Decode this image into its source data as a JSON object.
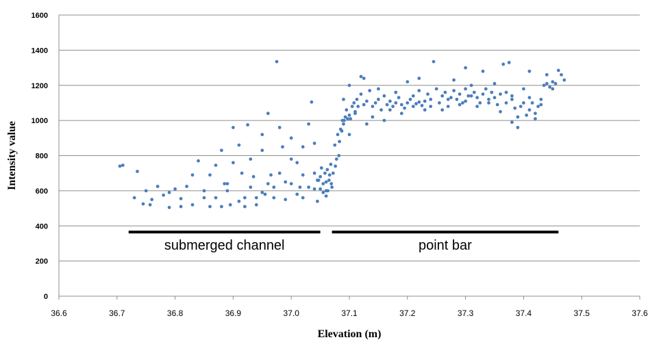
{
  "chart_data": {
    "type": "scatter",
    "xlabel": "Elevation (m)",
    "ylabel": "Intensity value",
    "xlim": [
      36.6,
      37.6
    ],
    "ylim": [
      0,
      1600
    ],
    "xticks": [
      "36.6",
      "36.7",
      "36.8",
      "36.9",
      "37.0",
      "37.1",
      "37.2",
      "37.3",
      "37.4",
      "37.5",
      "37.6"
    ],
    "yticks": [
      "0",
      "200",
      "400",
      "600",
      "800",
      "1000",
      "1200",
      "1400",
      "1600"
    ],
    "grid": "horizontal",
    "point_color": "#4a7ebb",
    "annotations": [
      {
        "text": "submerged channel",
        "x_range": [
          36.72,
          37.05
        ],
        "y": 365
      },
      {
        "text": "point bar",
        "x_range": [
          37.07,
          37.46
        ],
        "y": 365
      }
    ],
    "series": [
      {
        "points": [
          [
            36.71,
            745
          ],
          [
            36.705,
            740
          ],
          [
            36.735,
            710
          ],
          [
            36.73,
            560
          ],
          [
            36.745,
            525
          ],
          [
            36.757,
            520
          ],
          [
            36.77,
            625
          ],
          [
            36.78,
            575
          ],
          [
            36.79,
            505
          ],
          [
            36.8,
            610
          ],
          [
            36.81,
            555
          ],
          [
            36.82,
            625
          ],
          [
            36.83,
            520
          ],
          [
            36.84,
            770
          ],
          [
            36.85,
            560
          ],
          [
            36.86,
            690
          ],
          [
            36.87,
            745
          ],
          [
            36.88,
            830
          ],
          [
            36.885,
            640
          ],
          [
            36.89,
            600
          ],
          [
            36.895,
            520
          ],
          [
            36.9,
            960
          ],
          [
            36.91,
            860
          ],
          [
            36.915,
            700
          ],
          [
            36.92,
            560
          ],
          [
            36.925,
            975
          ],
          [
            36.93,
            780
          ],
          [
            36.935,
            680
          ],
          [
            36.94,
            520
          ],
          [
            36.95,
            920
          ],
          [
            36.955,
            580
          ],
          [
            36.96,
            1040
          ],
          [
            36.965,
            690
          ],
          [
            36.97,
            620
          ],
          [
            36.975,
            1335
          ],
          [
            36.98,
            960
          ],
          [
            36.985,
            850
          ],
          [
            36.99,
            550
          ],
          [
            37.0,
            900
          ],
          [
            37.01,
            760
          ],
          [
            37.015,
            620
          ],
          [
            37.02,
            690
          ],
          [
            37.03,
            980
          ],
          [
            37.035,
            1105
          ],
          [
            37.04,
            870
          ],
          [
            37.045,
            540
          ],
          [
            36.75,
            600
          ],
          [
            36.76,
            550
          ],
          [
            36.79,
            590
          ],
          [
            36.81,
            510
          ],
          [
            36.83,
            690
          ],
          [
            36.85,
            600
          ],
          [
            36.87,
            560
          ],
          [
            36.89,
            640
          ],
          [
            36.91,
            540
          ],
          [
            36.93,
            620
          ],
          [
            36.95,
            590
          ],
          [
            36.97,
            560
          ],
          [
            36.99,
            650
          ],
          [
            37.01,
            580
          ],
          [
            37.03,
            620
          ],
          [
            37.045,
            660
          ],
          [
            36.86,
            510
          ],
          [
            36.88,
            510
          ],
          [
            36.92,
            510
          ],
          [
            36.94,
            560
          ],
          [
            36.96,
            640
          ],
          [
            36.98,
            700
          ],
          [
            37.0,
            640
          ],
          [
            37.02,
            560
          ],
          [
            37.04,
            700
          ],
          [
            36.9,
            760
          ],
          [
            36.95,
            830
          ],
          [
            37.0,
            780
          ],
          [
            37.02,
            850
          ],
          [
            37.04,
            610
          ],
          [
            37.05,
            680
          ],
          [
            37.055,
            640
          ],
          [
            37.06,
            600
          ],
          [
            37.062,
            720
          ],
          [
            37.065,
            660
          ],
          [
            37.068,
            750
          ],
          [
            37.07,
            620
          ],
          [
            37.055,
            590
          ],
          [
            37.058,
            700
          ],
          [
            37.06,
            650
          ],
          [
            37.063,
            600
          ],
          [
            37.066,
            690
          ],
          [
            37.069,
            640
          ],
          [
            37.05,
            610
          ],
          [
            37.052,
            730
          ],
          [
            37.047,
            660
          ],
          [
            37.075,
            860
          ],
          [
            37.08,
            920
          ],
          [
            37.082,
            800
          ],
          [
            37.085,
            950
          ],
          [
            37.088,
            1000
          ],
          [
            37.09,
            980
          ],
          [
            37.093,
            1020
          ],
          [
            37.095,
            1060
          ],
          [
            37.1,
            1030
          ],
          [
            37.102,
            1010
          ],
          [
            37.105,
            1080
          ],
          [
            37.108,
            1100
          ],
          [
            37.11,
            1050
          ],
          [
            37.113,
            1120
          ],
          [
            37.115,
            1080
          ],
          [
            37.12,
            1150
          ],
          [
            37.125,
            1090
          ],
          [
            37.13,
            1110
          ],
          [
            37.135,
            1170
          ],
          [
            37.14,
            1080
          ],
          [
            37.145,
            1100
          ],
          [
            37.15,
            1120
          ],
          [
            37.155,
            1060
          ],
          [
            37.16,
            1140
          ],
          [
            37.165,
            1090
          ],
          [
            37.17,
            1110
          ],
          [
            37.175,
            1080
          ],
          [
            37.18,
            1100
          ],
          [
            37.185,
            1130
          ],
          [
            37.19,
            1090
          ],
          [
            37.195,
            1070
          ],
          [
            37.2,
            1100
          ],
          [
            37.205,
            1120
          ],
          [
            37.21,
            1080
          ],
          [
            37.215,
            1095
          ],
          [
            37.22,
            1105
          ],
          [
            37.225,
            1085
          ],
          [
            37.23,
            1110
          ],
          [
            37.235,
            1150
          ],
          [
            37.24,
            1120
          ],
          [
            37.245,
            1335
          ],
          [
            37.25,
            1180
          ],
          [
            37.255,
            1100
          ],
          [
            37.26,
            1140
          ],
          [
            37.265,
            1160
          ],
          [
            37.27,
            1080
          ],
          [
            37.275,
            1130
          ],
          [
            37.28,
            1170
          ],
          [
            37.285,
            1120
          ],
          [
            37.29,
            1150
          ],
          [
            37.295,
            1100
          ],
          [
            37.3,
            1180
          ],
          [
            37.305,
            1140
          ],
          [
            37.31,
            1200
          ],
          [
            37.315,
            1160
          ],
          [
            37.32,
            1130
          ],
          [
            37.325,
            1100
          ],
          [
            37.33,
            1150
          ],
          [
            37.335,
            1180
          ],
          [
            37.34,
            1120
          ],
          [
            37.345,
            1160
          ],
          [
            37.35,
            1130
          ],
          [
            37.355,
            1090
          ],
          [
            37.36,
            1150
          ],
          [
            37.365,
            1320
          ],
          [
            37.37,
            1100
          ],
          [
            37.375,
            1330
          ],
          [
            37.38,
            1120
          ],
          [
            37.385,
            1070
          ],
          [
            37.39,
            1020
          ],
          [
            37.395,
            1080
          ],
          [
            37.4,
            1100
          ],
          [
            37.405,
            1030
          ],
          [
            37.41,
            1060
          ],
          [
            37.415,
            1100
          ],
          [
            37.42,
            1040
          ],
          [
            37.425,
            1080
          ],
          [
            37.43,
            1120
          ],
          [
            37.435,
            1200
          ],
          [
            37.44,
            1210
          ],
          [
            37.445,
            1190
          ],
          [
            37.45,
            1220
          ],
          [
            37.455,
            1210
          ],
          [
            37.46,
            1285
          ],
          [
            37.465,
            1260
          ],
          [
            37.47,
            1230
          ],
          [
            37.12,
            1250
          ],
          [
            37.125,
            1240
          ],
          [
            37.2,
            1220
          ],
          [
            37.22,
            1240
          ],
          [
            37.3,
            1300
          ],
          [
            37.33,
            1280
          ],
          [
            37.41,
            1280
          ],
          [
            37.44,
            1260
          ],
          [
            37.1,
            920
          ],
          [
            37.13,
            980
          ],
          [
            37.16,
            1000
          ],
          [
            37.19,
            1040
          ],
          [
            37.23,
            1060
          ],
          [
            37.26,
            1060
          ],
          [
            37.29,
            1090
          ],
          [
            37.32,
            1080
          ],
          [
            37.36,
            1050
          ],
          [
            37.38,
            990
          ],
          [
            37.39,
            960
          ],
          [
            37.42,
            1010
          ],
          [
            37.14,
            1020
          ],
          [
            37.17,
            1060
          ],
          [
            37.21,
            1140
          ],
          [
            37.24,
            1080
          ],
          [
            37.27,
            1120
          ],
          [
            37.31,
            1140
          ],
          [
            37.34,
            1100
          ],
          [
            37.37,
            1160
          ],
          [
            37.4,
            1180
          ],
          [
            37.43,
            1090
          ],
          [
            37.11,
            1040
          ],
          [
            37.15,
            1180
          ],
          [
            37.18,
            1160
          ],
          [
            37.22,
            1170
          ],
          [
            37.28,
            1230
          ],
          [
            37.3,
            1110
          ],
          [
            37.35,
            1210
          ],
          [
            37.38,
            1140
          ],
          [
            37.41,
            1130
          ],
          [
            37.45,
            1180
          ],
          [
            37.083,
            880
          ],
          [
            37.087,
            940
          ],
          [
            37.091,
            1000
          ],
          [
            37.097,
            1010
          ],
          [
            37.078,
            780
          ],
          [
            37.072,
            700
          ],
          [
            37.076,
            740
          ],
          [
            37.09,
            1120
          ],
          [
            37.1,
            1200
          ],
          [
            37.06,
            570
          ]
        ]
      }
    ]
  }
}
